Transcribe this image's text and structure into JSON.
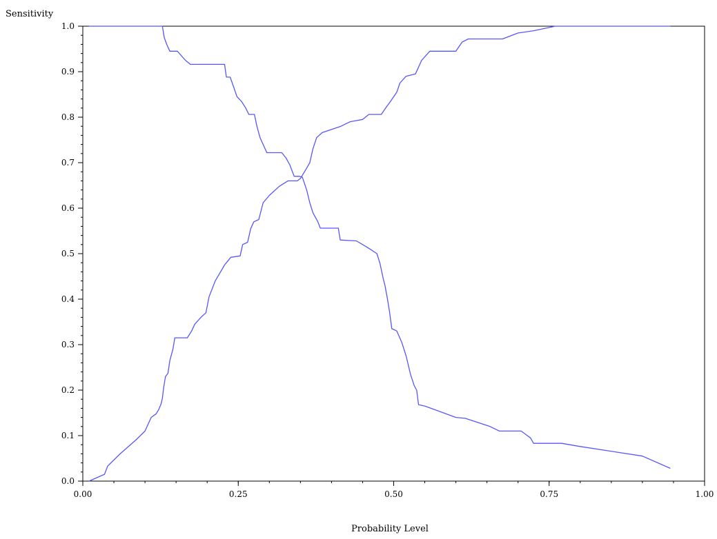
{
  "chart_data": {
    "type": "line",
    "ylabel": "Sensitivity",
    "xlabel": "Probability  Level",
    "xlim": [
      0,
      1
    ],
    "ylim": [
      0,
      1
    ],
    "x_ticks": [
      "0.00",
      "0.25",
      "0.50",
      "0.75",
      "1.00"
    ],
    "x_tick_values": [
      0,
      0.25,
      0.5,
      0.75,
      1
    ],
    "y_ticks": [
      "0.0",
      "0.1",
      "0.2",
      "0.3",
      "0.4",
      "0.5",
      "0.6",
      "0.7",
      "0.8",
      "0.9",
      "1.0"
    ],
    "y_tick_values": [
      0,
      0.1,
      0.2,
      0.3,
      0.4,
      0.5,
      0.6,
      0.7,
      0.8,
      0.9,
      1.0
    ],
    "grid": false,
    "line_color": "#5555ff",
    "series": [
      {
        "points": [
          [
            0.01,
            1.0
          ],
          [
            0.128,
            1.0
          ],
          [
            0.131,
            0.975
          ],
          [
            0.135,
            0.96
          ],
          [
            0.14,
            0.945
          ],
          [
            0.152,
            0.945
          ],
          [
            0.165,
            0.925
          ],
          [
            0.173,
            0.916
          ],
          [
            0.228,
            0.916
          ],
          [
            0.231,
            0.888
          ],
          [
            0.237,
            0.888
          ],
          [
            0.243,
            0.865
          ],
          [
            0.248,
            0.845
          ],
          [
            0.255,
            0.835
          ],
          [
            0.262,
            0.82
          ],
          [
            0.267,
            0.806
          ],
          [
            0.276,
            0.806
          ],
          [
            0.28,
            0.78
          ],
          [
            0.285,
            0.755
          ],
          [
            0.29,
            0.74
          ],
          [
            0.296,
            0.722
          ],
          [
            0.32,
            0.722
          ],
          [
            0.327,
            0.71
          ],
          [
            0.333,
            0.695
          ],
          [
            0.34,
            0.67
          ],
          [
            0.348,
            0.67
          ],
          [
            0.353,
            0.668
          ],
          [
            0.36,
            0.64
          ],
          [
            0.365,
            0.612
          ],
          [
            0.37,
            0.59
          ],
          [
            0.378,
            0.57
          ],
          [
            0.382,
            0.556
          ],
          [
            0.411,
            0.556
          ],
          [
            0.414,
            0.53
          ],
          [
            0.44,
            0.528
          ],
          [
            0.45,
            0.52
          ],
          [
            0.462,
            0.51
          ],
          [
            0.473,
            0.5
          ],
          [
            0.478,
            0.478
          ],
          [
            0.483,
            0.446
          ],
          [
            0.486,
            0.43
          ],
          [
            0.49,
            0.4
          ],
          [
            0.493,
            0.375
          ],
          [
            0.497,
            0.335
          ],
          [
            0.505,
            0.33
          ],
          [
            0.513,
            0.305
          ],
          [
            0.52,
            0.275
          ],
          [
            0.527,
            0.235
          ],
          [
            0.533,
            0.21
          ],
          [
            0.537,
            0.2
          ],
          [
            0.54,
            0.168
          ],
          [
            0.55,
            0.165
          ],
          [
            0.6,
            0.14
          ],
          [
            0.615,
            0.138
          ],
          [
            0.655,
            0.12
          ],
          [
            0.67,
            0.11
          ],
          [
            0.705,
            0.11
          ],
          [
            0.72,
            0.095
          ],
          [
            0.725,
            0.083
          ],
          [
            0.77,
            0.083
          ],
          [
            0.8,
            0.076
          ],
          [
            0.9,
            0.055
          ],
          [
            0.945,
            0.028
          ]
        ]
      },
      {
        "points": [
          [
            0.01,
            0.0
          ],
          [
            0.035,
            0.015
          ],
          [
            0.04,
            0.033
          ],
          [
            0.06,
            0.06
          ],
          [
            0.085,
            0.09
          ],
          [
            0.1,
            0.11
          ],
          [
            0.105,
            0.125
          ],
          [
            0.11,
            0.14
          ],
          [
            0.118,
            0.148
          ],
          [
            0.122,
            0.157
          ],
          [
            0.126,
            0.17
          ],
          [
            0.128,
            0.182
          ],
          [
            0.13,
            0.205
          ],
          [
            0.133,
            0.23
          ],
          [
            0.137,
            0.237
          ],
          [
            0.14,
            0.265
          ],
          [
            0.145,
            0.29
          ],
          [
            0.148,
            0.315
          ],
          [
            0.168,
            0.315
          ],
          [
            0.175,
            0.33
          ],
          [
            0.18,
            0.345
          ],
          [
            0.19,
            0.36
          ],
          [
            0.198,
            0.37
          ],
          [
            0.203,
            0.405
          ],
          [
            0.213,
            0.44
          ],
          [
            0.228,
            0.475
          ],
          [
            0.238,
            0.492
          ],
          [
            0.253,
            0.495
          ],
          [
            0.257,
            0.52
          ],
          [
            0.265,
            0.525
          ],
          [
            0.27,
            0.555
          ],
          [
            0.275,
            0.57
          ],
          [
            0.283,
            0.575
          ],
          [
            0.29,
            0.612
          ],
          [
            0.3,
            0.628
          ],
          [
            0.316,
            0.648
          ],
          [
            0.33,
            0.66
          ],
          [
            0.345,
            0.66
          ],
          [
            0.35,
            0.665
          ],
          [
            0.36,
            0.688
          ],
          [
            0.365,
            0.7
          ],
          [
            0.37,
            0.73
          ],
          [
            0.376,
            0.755
          ],
          [
            0.385,
            0.766
          ],
          [
            0.415,
            0.78
          ],
          [
            0.43,
            0.79
          ],
          [
            0.45,
            0.795
          ],
          [
            0.46,
            0.806
          ],
          [
            0.48,
            0.806
          ],
          [
            0.488,
            0.822
          ],
          [
            0.495,
            0.835
          ],
          [
            0.505,
            0.855
          ],
          [
            0.51,
            0.875
          ],
          [
            0.52,
            0.89
          ],
          [
            0.535,
            0.895
          ],
          [
            0.545,
            0.925
          ],
          [
            0.558,
            0.945
          ],
          [
            0.6,
            0.945
          ],
          [
            0.61,
            0.965
          ],
          [
            0.62,
            0.972
          ],
          [
            0.675,
            0.972
          ],
          [
            0.7,
            0.985
          ],
          [
            0.725,
            0.99
          ],
          [
            0.76,
            1.0
          ],
          [
            0.945,
            1.0
          ]
        ]
      }
    ]
  }
}
